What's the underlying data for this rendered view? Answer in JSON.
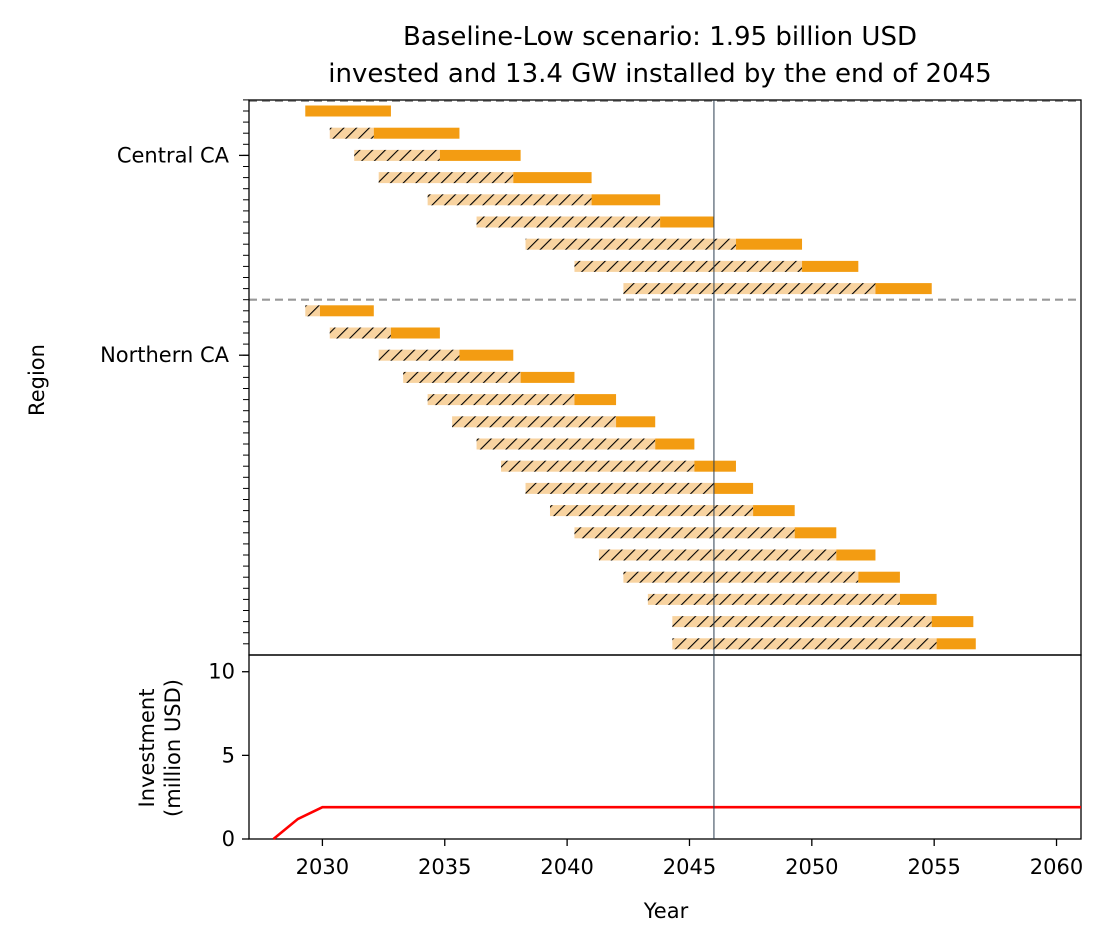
{
  "chart_data": [
    {
      "type": "gantt",
      "title": [
        "Baseline-Low scenario: 1.95 billion USD",
        "invested and 13.4 GW installed by the end of 2045"
      ],
      "xlabel": "",
      "ylabel": "Region",
      "xlim": [
        2027,
        2061
      ],
      "marker_line_year": 2046,
      "colors": {
        "build": "#f39c12",
        "construction_fill": "#f8d3a0",
        "marker_line": "#2c3e50",
        "divider": "#999999"
      },
      "groups": [
        {
          "name": "Central CA",
          "bars": [
            {
              "start": 2029.3,
              "build_start": 2029.3,
              "end": 2032.8
            },
            {
              "start": 2030.3,
              "build_start": 2032.1,
              "end": 2035.6
            },
            {
              "start": 2031.3,
              "build_start": 2034.8,
              "end": 2038.1
            },
            {
              "start": 2032.3,
              "build_start": 2037.8,
              "end": 2041.0
            },
            {
              "start": 2034.3,
              "build_start": 2041.0,
              "end": 2043.8
            },
            {
              "start": 2036.3,
              "build_start": 2043.8,
              "end": 2046.0
            },
            {
              "start": 2038.3,
              "build_start": 2046.9,
              "end": 2049.6
            },
            {
              "start": 2040.3,
              "build_start": 2049.6,
              "end": 2051.9
            },
            {
              "start": 2042.3,
              "build_start": 2052.6,
              "end": 2054.9
            }
          ]
        },
        {
          "name": "Northern CA",
          "bars": [
            {
              "start": 2029.3,
              "build_start": 2029.9,
              "end": 2032.1
            },
            {
              "start": 2030.3,
              "build_start": 2032.8,
              "end": 2034.8
            },
            {
              "start": 2032.3,
              "build_start": 2035.6,
              "end": 2037.8
            },
            {
              "start": 2033.3,
              "build_start": 2038.1,
              "end": 2040.3
            },
            {
              "start": 2034.3,
              "build_start": 2040.3,
              "end": 2042.0
            },
            {
              "start": 2035.3,
              "build_start": 2042.0,
              "end": 2043.6
            },
            {
              "start": 2036.3,
              "build_start": 2043.6,
              "end": 2045.2
            },
            {
              "start": 2037.3,
              "build_start": 2045.2,
              "end": 2046.9
            },
            {
              "start": 2038.3,
              "build_start": 2046.0,
              "end": 2047.6
            },
            {
              "start": 2039.3,
              "build_start": 2047.6,
              "end": 2049.3
            },
            {
              "start": 2040.3,
              "build_start": 2049.3,
              "end": 2051.0
            },
            {
              "start": 2041.3,
              "build_start": 2051.0,
              "end": 2052.6
            },
            {
              "start": 2042.3,
              "build_start": 2051.9,
              "end": 2053.6
            },
            {
              "start": 2043.3,
              "build_start": 2053.6,
              "end": 2055.1
            },
            {
              "start": 2044.3,
              "build_start": 2054.9,
              "end": 2056.6
            },
            {
              "start": 2044.3,
              "build_start": 2055.1,
              "end": 2056.7
            }
          ]
        }
      ]
    },
    {
      "type": "line",
      "xlabel": "Year",
      "ylabel": [
        "Investment",
        "(million USD)"
      ],
      "xlim": [
        2027,
        2061
      ],
      "ylim": [
        0,
        11
      ],
      "xticks": [
        2030,
        2035,
        2040,
        2045,
        2050,
        2055,
        2060
      ],
      "yticks": [
        0,
        5,
        10
      ],
      "color": "#ff0000",
      "x": [
        2028,
        2029,
        2030,
        2061
      ],
      "y": [
        0,
        1.2,
        1.9,
        1.9
      ]
    }
  ]
}
